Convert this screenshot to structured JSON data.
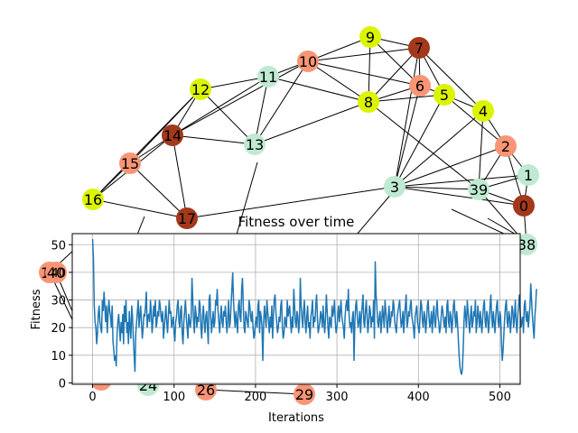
{
  "colors": {
    "yellow": "#dbf400",
    "salmon": "#f99576",
    "brown": "#a2391a",
    "mint": "#bfe9d2",
    "edge": "#000000",
    "line": "#1f77b4",
    "grid": "#b0b0b0"
  },
  "graph": {
    "nodes": [
      {
        "id": "0",
        "color": "brown"
      },
      {
        "id": "1",
        "color": "mint"
      },
      {
        "id": "2",
        "color": "salmon"
      },
      {
        "id": "3",
        "color": "mint"
      },
      {
        "id": "4",
        "color": "yellow"
      },
      {
        "id": "5",
        "color": "yellow"
      },
      {
        "id": "6",
        "color": "salmon"
      },
      {
        "id": "7",
        "color": "brown"
      },
      {
        "id": "8",
        "color": "yellow"
      },
      {
        "id": "9",
        "color": "yellow"
      },
      {
        "id": "10",
        "color": "salmon"
      },
      {
        "id": "11",
        "color": "mint"
      },
      {
        "id": "12",
        "color": "yellow"
      },
      {
        "id": "13",
        "color": "mint"
      },
      {
        "id": "14",
        "color": "brown"
      },
      {
        "id": "15",
        "color": "salmon"
      },
      {
        "id": "16",
        "color": "yellow"
      },
      {
        "id": "17",
        "color": "brown"
      },
      {
        "id": "19",
        "color": "salmon"
      },
      {
        "id": "40",
        "color": "salmon"
      },
      {
        "id": "24",
        "color": "mint"
      },
      {
        "id": "26",
        "color": "salmon"
      },
      {
        "id": "29",
        "color": "salmon"
      },
      {
        "id": "38",
        "color": "mint"
      },
      {
        "id": "39",
        "color": "mint"
      },
      {
        "id": "partial",
        "color": "salmon"
      }
    ],
    "edges": [
      [
        "9",
        "10"
      ],
      [
        "9",
        "7"
      ],
      [
        "9",
        "6"
      ],
      [
        "9",
        "8"
      ],
      [
        "10",
        "11"
      ],
      [
        "10",
        "7"
      ],
      [
        "10",
        "6"
      ],
      [
        "10",
        "8"
      ],
      [
        "10",
        "13"
      ],
      [
        "10",
        "14"
      ],
      [
        "11",
        "12"
      ],
      [
        "11",
        "8"
      ],
      [
        "11",
        "13"
      ],
      [
        "11",
        "14"
      ],
      [
        "12",
        "14"
      ],
      [
        "12",
        "13"
      ],
      [
        "12",
        "15"
      ],
      [
        "12",
        "16"
      ],
      [
        "14",
        "15"
      ],
      [
        "14",
        "16"
      ],
      [
        "14",
        "17"
      ],
      [
        "14",
        "13"
      ],
      [
        "15",
        "16"
      ],
      [
        "15",
        "17"
      ],
      [
        "16",
        "17"
      ],
      [
        "13",
        "8"
      ],
      [
        "8",
        "6"
      ],
      [
        "8",
        "7"
      ],
      [
        "8",
        "5"
      ],
      [
        "8",
        "39"
      ],
      [
        "7",
        "6"
      ],
      [
        "7",
        "5"
      ],
      [
        "7",
        "4"
      ],
      [
        "7",
        "3"
      ],
      [
        "6",
        "5"
      ],
      [
        "6",
        "3"
      ],
      [
        "5",
        "4"
      ],
      [
        "5",
        "2"
      ],
      [
        "5",
        "3"
      ],
      [
        "4",
        "2"
      ],
      [
        "4",
        "3"
      ],
      [
        "4",
        "39"
      ],
      [
        "2",
        "1"
      ],
      [
        "2",
        "0"
      ],
      [
        "2",
        "3"
      ],
      [
        "2",
        "39"
      ],
      [
        "1",
        "3"
      ],
      [
        "1",
        "0"
      ],
      [
        "1",
        "39"
      ],
      [
        "0",
        "3"
      ],
      [
        "0",
        "39"
      ],
      [
        "0",
        "38"
      ],
      [
        "3",
        "39"
      ],
      [
        "3",
        "17"
      ],
      [
        "39",
        "38"
      ],
      [
        "26",
        "29"
      ],
      [
        "19",
        "partial"
      ],
      [
        "40",
        "partial"
      ]
    ]
  },
  "chart_data": {
    "type": "line",
    "title": "Fitness over time",
    "xlabel": "Iterations",
    "ylabel": "Fitness",
    "xlim": [
      -25,
      525
    ],
    "ylim": [
      -0.5,
      54
    ],
    "xticks": [
      0,
      100,
      200,
      300,
      400,
      500
    ],
    "yticks": [
      0,
      10,
      20,
      30,
      40,
      50
    ],
    "grid": true,
    "series": [
      {
        "color": "line",
        "x_start": 0,
        "x_step": 1,
        "values": [
          52,
          45,
          28,
          22,
          20,
          14,
          18,
          25,
          28,
          22,
          20,
          18,
          30,
          26,
          33,
          28,
          22,
          28,
          18,
          25,
          30,
          26,
          24,
          20,
          28,
          15,
          12,
          8,
          10,
          6,
          18,
          22,
          25,
          20,
          15,
          22,
          18,
          25,
          14,
          28,
          22,
          30,
          18,
          22,
          14,
          26,
          20,
          16,
          28,
          24,
          16,
          10,
          4,
          18,
          22,
          26,
          30,
          20,
          24,
          28,
          22,
          16,
          20,
          25,
          24,
          28,
          33,
          20,
          24,
          25,
          22,
          30,
          26,
          18,
          22,
          28,
          24,
          30,
          20,
          22,
          26,
          24,
          30,
          28,
          24,
          22,
          26,
          16,
          20,
          24,
          28,
          22,
          18,
          24,
          30,
          25,
          26,
          20,
          22,
          24,
          18,
          15,
          22,
          24,
          28,
          30,
          22,
          20,
          26,
          28,
          18,
          14,
          22,
          26,
          30,
          24,
          20,
          16,
          25,
          22,
          20,
          24,
          38,
          30,
          22,
          18,
          28,
          25,
          20,
          24,
          22,
          30,
          28,
          20,
          16,
          24,
          28,
          22,
          18,
          24,
          26,
          20,
          14,
          30,
          32,
          24,
          18,
          22,
          26,
          20,
          22,
          30,
          28,
          34,
          26,
          22,
          18,
          24,
          28,
          22,
          20,
          26,
          24,
          28,
          22,
          18,
          24,
          30,
          20,
          22,
          28,
          34,
          40,
          30,
          24,
          20,
          26,
          22,
          18,
          28,
          30,
          24,
          22,
          34,
          38,
          28,
          20,
          18,
          26,
          24,
          22,
          20,
          30,
          28,
          24,
          22,
          26,
          20,
          16,
          18,
          22,
          24,
          20,
          28,
          30,
          18,
          26,
          24,
          20,
          8,
          22,
          28,
          24,
          20,
          30,
          26,
          22,
          18,
          24,
          20,
          28,
          16,
          24,
          30,
          32,
          26,
          22,
          18,
          20,
          24,
          22,
          28,
          30,
          20,
          16,
          18,
          24,
          22,
          20,
          30,
          24,
          26,
          28,
          22,
          18,
          24,
          20,
          34,
          28,
          22,
          20,
          26,
          24,
          18,
          22,
          38,
          28,
          24,
          20,
          26,
          30,
          22,
          18,
          24,
          28,
          20,
          22,
          16,
          24,
          26,
          30,
          20,
          24,
          22,
          28,
          32,
          24,
          18,
          20,
          22,
          26,
          24,
          20,
          28,
          22,
          18,
          24,
          32,
          26,
          20,
          16,
          24,
          22,
          20,
          28,
          24,
          26,
          30,
          22,
          18,
          20,
          24,
          28,
          22,
          26,
          30,
          24,
          22,
          20,
          16,
          24,
          28,
          30,
          26,
          34,
          24,
          20,
          22,
          18,
          24,
          26,
          8,
          22,
          28,
          30,
          24,
          20,
          22,
          26,
          18,
          24,
          28,
          32,
          22,
          20,
          26,
          30,
          24,
          18,
          22,
          28,
          26,
          20,
          24,
          22,
          30,
          16,
          44,
          32,
          28,
          22,
          20,
          24,
          26,
          18,
          22,
          28,
          24,
          20,
          30,
          26,
          22,
          18,
          24,
          28,
          20,
          22,
          26,
          24,
          30,
          28,
          22,
          20,
          18,
          24,
          26,
          28,
          30,
          24,
          20,
          22,
          26,
          18,
          24,
          28,
          32,
          20,
          22,
          26,
          24,
          28,
          30,
          24,
          22,
          20,
          16,
          24,
          26,
          28,
          22,
          20,
          18,
          24,
          30,
          28,
          22,
          20,
          26,
          24,
          18,
          22,
          28,
          30,
          24,
          20,
          22,
          26,
          18,
          24,
          28,
          22,
          20,
          26,
          30,
          24,
          22,
          18,
          20,
          24,
          28,
          26,
          22,
          20,
          24,
          18,
          28,
          30,
          22,
          20,
          26,
          24,
          18,
          22,
          28,
          30,
          24,
          20,
          26,
          22,
          16,
          10,
          6,
          4,
          3,
          5,
          12,
          22,
          28,
          24,
          20,
          30,
          26,
          22,
          18,
          24,
          28,
          20,
          22,
          26,
          24,
          30,
          18,
          22,
          28,
          24,
          20,
          26,
          22,
          18,
          24,
          28,
          30,
          22,
          20,
          26,
          24,
          18,
          22,
          28,
          32,
          24,
          20,
          26,
          22,
          18,
          24,
          28,
          30,
          22,
          20,
          26,
          24,
          14,
          8,
          12,
          18,
          24,
          28,
          30,
          22,
          20,
          26,
          24,
          18,
          22,
          28,
          26,
          20,
          24,
          30,
          22,
          18,
          24,
          28,
          32,
          26,
          20,
          22,
          24,
          18,
          28,
          30,
          24,
          22,
          26,
          20,
          24,
          28,
          36,
          30,
          24,
          20,
          16,
          24,
          28,
          34
        ]
      }
    ]
  }
}
